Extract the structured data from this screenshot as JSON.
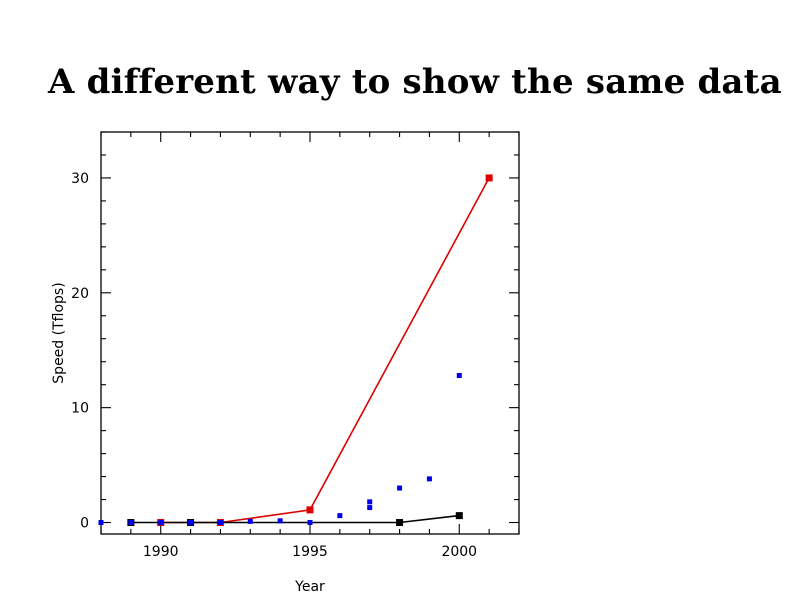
{
  "slide": {
    "title": "A different way to show the same data"
  },
  "chart_data": {
    "type": "scatter",
    "xlabel": "Year",
    "ylabel": "Speed (Tflops)",
    "xlim": [
      1988,
      2002
    ],
    "ylim": [
      -1,
      34
    ],
    "x_ticks": [
      1990,
      1995,
      2000
    ],
    "y_ticks": [
      0,
      10,
      20,
      30
    ],
    "grid": false,
    "series": [
      {
        "color": "#dd0000",
        "style": "line-markers",
        "marker": "square",
        "points": [
          [
            1990,
            0.0
          ],
          [
            1992,
            0.0
          ],
          [
            1995,
            1.1
          ],
          [
            2001,
            30.0
          ]
        ]
      },
      {
        "color": "#000000",
        "style": "line-markers",
        "marker": "square",
        "points": [
          [
            1989,
            0.0
          ],
          [
            1991,
            0.0
          ],
          [
            1998,
            0.0
          ],
          [
            2000,
            0.6
          ]
        ]
      },
      {
        "color": "#0000ee",
        "style": "markers",
        "marker": "square-small",
        "points": [
          [
            1988,
            0.0
          ],
          [
            1989,
            0.0
          ],
          [
            1990,
            0.0
          ],
          [
            1991,
            0.0
          ],
          [
            1992,
            0.0
          ],
          [
            1993,
            0.1
          ],
          [
            1994,
            0.15
          ],
          [
            1995,
            0.0
          ],
          [
            1996,
            0.6
          ],
          [
            1997,
            1.3
          ],
          [
            1997,
            1.8
          ],
          [
            1998,
            3.0
          ],
          [
            1999,
            3.8
          ],
          [
            2000,
            12.8
          ]
        ]
      }
    ]
  }
}
